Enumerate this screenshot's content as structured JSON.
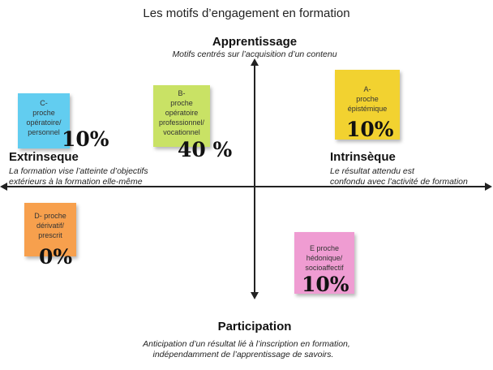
{
  "title": "Les motifs d’engagement en formation",
  "poles": {
    "top": {
      "title": "Apprentissage",
      "subtitle": "Motifs centrés sur l’acquisition d’un contenu"
    },
    "bottom": {
      "title": "Participation",
      "subtitle_line1": "Anticipation d’un résultat lié à l’inscription en formation,",
      "subtitle_line2": "indépendamment de l’apprentissage de savoirs."
    },
    "left": {
      "title": "Extrinseque",
      "subtitle_line1": "La formation vise l’atteinte d’objectifs",
      "subtitle_line2": "extérieurs à la formation elle-même"
    },
    "right": {
      "title": "Intrinsèque",
      "subtitle_line1": "Le résultat attendu est",
      "subtitle_line2": "confondu avec l’activité de formation"
    }
  },
  "notes": {
    "a": {
      "label": [
        "A-",
        "proche",
        "épistémique"
      ],
      "percent": "10%",
      "color": "#f2d230"
    },
    "b": {
      "label": [
        "B-",
        "proche",
        "opératoire",
        "professionnel/",
        "vocationnel"
      ],
      "percent": "40 %",
      "color": "#c9e265"
    },
    "c": {
      "label": [
        "C-",
        "proche",
        "opératoire/",
        "personnel"
      ],
      "percent": "10%",
      "color": "#62cdf0"
    },
    "d": {
      "label": [
        "D-  proche",
        "dérivatif/",
        "prescrit"
      ],
      "percent": "0%",
      "color": "#f7a04d"
    },
    "e": {
      "label": [
        "E proche",
        "hédonique/",
        "socioaffectif"
      ],
      "percent": "10%",
      "color": "#ef9cd2"
    }
  }
}
